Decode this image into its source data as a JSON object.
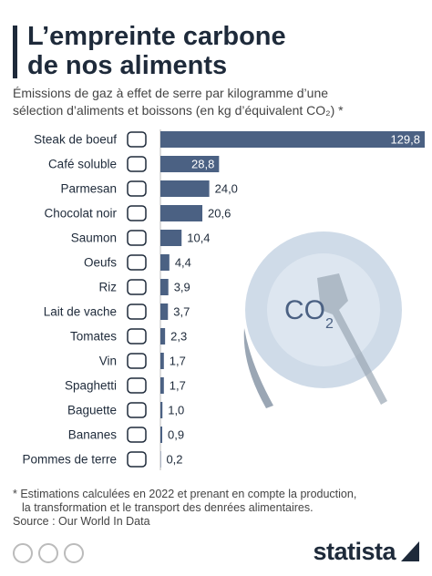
{
  "chart_data": {
    "type": "bar",
    "title": [
      "L’empreinte carbone",
      "de nos aliments"
    ],
    "subtitle": [
      "Émissions de gaz à effet de serre par kilogramme d’une",
      "sélection d’aliments et boissons (en kg d’équivalent CO₂) *"
    ],
    "categories": [
      "Steak de boeuf",
      "Café soluble",
      "Parmesan",
      "Chocolat noir",
      "Saumon",
      "Oeufs",
      "Riz",
      "Lait de vache",
      "Tomates",
      "Vin",
      "Spaghetti",
      "Baguette",
      "Bananes",
      "Pommes de terre"
    ],
    "values": [
      129.8,
      28.8,
      24.0,
      20.6,
      10.4,
      4.4,
      3.9,
      3.7,
      2.3,
      1.7,
      1.7,
      1.0,
      0.9,
      0.2
    ],
    "value_labels": [
      "129,8",
      "28,8",
      "24,0",
      "20,6",
      "10,4",
      "4,4",
      "3,9",
      "3,7",
      "2,3",
      "1,7",
      "1,7",
      "1,0",
      "0,9",
      "0,2"
    ],
    "color": "#4b6183",
    "plate_label": "CO",
    "plate_subscript": "2",
    "notes": [
      "* Estimations calculées en 2022 et prenant en compte la production,",
      "la transformation et le transport des denrées alimentaires."
    ],
    "source": "Source : Our World In Data",
    "brand": "statista"
  }
}
